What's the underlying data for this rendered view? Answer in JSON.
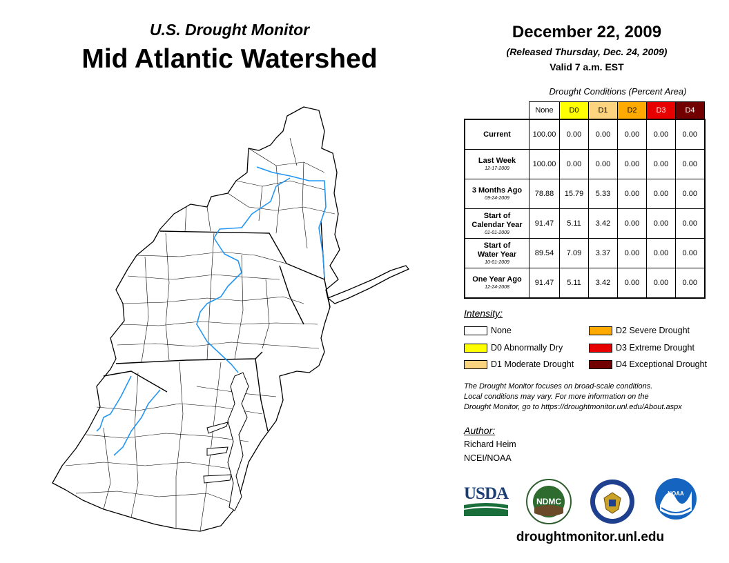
{
  "header": {
    "subtitle": "U.S. Drought Monitor",
    "title": "Mid Atlantic Watershed",
    "date": "December 22, 2009",
    "released": "(Released Thursday, Dec. 24, 2009)",
    "valid": "Valid 7 a.m. EST"
  },
  "table": {
    "caption": "Drought Conditions (Percent Area)",
    "columns": [
      "None",
      "D0",
      "D1",
      "D2",
      "D3",
      "D4"
    ],
    "column_colors": [
      "#FFFFFF",
      "#FFFF00",
      "#FCD37F",
      "#FFAA00",
      "#E60000",
      "#730000"
    ],
    "rows": [
      {
        "label": "Current",
        "date": "",
        "values": [
          "100.00",
          "0.00",
          "0.00",
          "0.00",
          "0.00",
          "0.00"
        ]
      },
      {
        "label": "Last Week",
        "date": "12-17-2009",
        "values": [
          "100.00",
          "0.00",
          "0.00",
          "0.00",
          "0.00",
          "0.00"
        ]
      },
      {
        "label": "3 Months Ago",
        "date": "09-24-2009",
        "values": [
          "78.88",
          "15.79",
          "5.33",
          "0.00",
          "0.00",
          "0.00"
        ]
      },
      {
        "label_line1": "Start of",
        "label_line2": "Calendar Year",
        "date": "01-01-2009",
        "values": [
          "91.47",
          "5.11",
          "3.42",
          "0.00",
          "0.00",
          "0.00"
        ]
      },
      {
        "label_line1": "Start of",
        "label_line2": "Water Year",
        "date": "10-01-2009",
        "values": [
          "89.54",
          "7.09",
          "3.37",
          "0.00",
          "0.00",
          "0.00"
        ]
      },
      {
        "label": "One Year Ago",
        "date": "12-24-2008",
        "values": [
          "91.47",
          "5.11",
          "3.42",
          "0.00",
          "0.00",
          "0.00"
        ]
      }
    ]
  },
  "legend": {
    "title": "Intensity:",
    "items": [
      {
        "label": "None",
        "color": "#FFFFFF"
      },
      {
        "label": "D0 Abnormally Dry",
        "color": "#FFFF00"
      },
      {
        "label": "D1 Moderate Drought",
        "color": "#FCD37F"
      },
      {
        "label": "D2 Severe Drought",
        "color": "#FFAA00"
      },
      {
        "label": "D3 Extreme Drought",
        "color": "#E60000"
      },
      {
        "label": "D4 Exceptional Drought",
        "color": "#730000"
      }
    ]
  },
  "note": {
    "line1": "The Drought Monitor focuses on broad-scale conditions.",
    "line2": "Local conditions may vary. For more information on the",
    "line3": "Drought Monitor, go to https://droughtmonitor.unl.edu/About.aspx"
  },
  "author": {
    "title": "Author:",
    "name": "Richard Heim",
    "org": "NCEI/NOAA"
  },
  "logos": {
    "usda": "USDA",
    "ndmc": "NDMC",
    "noaa": "NOAA"
  },
  "footer": {
    "site": "droughtmonitor.unl.edu"
  },
  "map": {
    "river_color": "#2196F3"
  }
}
